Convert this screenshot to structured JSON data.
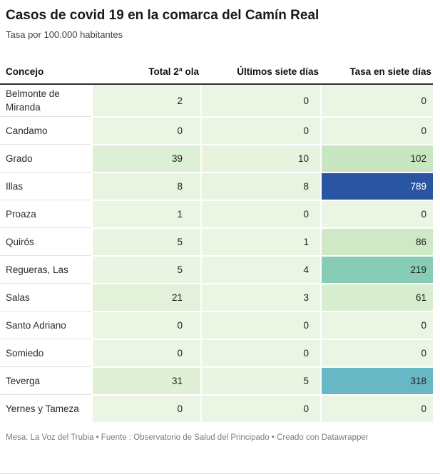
{
  "header": {
    "title": "Casos de covid 19 en la comarca del Camín Real",
    "subtitle": "Tasa por 100.000 habitantes"
  },
  "chart_data": {
    "type": "table",
    "title": "Casos de covid 19 en la comarca del Camín Real",
    "subtitle": "Tasa por 100.000 habitantes",
    "columns": [
      "Concejo",
      "Total 2ª ola",
      "Últimos siete días",
      "Tasa en siete días"
    ],
    "heatmap_scale": {
      "low": "#eaf5e3",
      "mid_green": "#c8e6c0",
      "teal": "#86ccb6",
      "blue_teal": "#67b7c5",
      "high": "#2a55a0"
    },
    "rows": [
      {
        "concejo": "Belmonte de Miranda",
        "cells": [
          {
            "value": 2,
            "bg": "#eaf5e3"
          },
          {
            "value": 0,
            "bg": "#eaf5e3"
          },
          {
            "value": 0,
            "bg": "#eaf5e3"
          }
        ]
      },
      {
        "concejo": "Candamo",
        "cells": [
          {
            "value": 0,
            "bg": "#eaf5e3"
          },
          {
            "value": 0,
            "bg": "#eaf5e3"
          },
          {
            "value": 0,
            "bg": "#eaf5e3"
          }
        ]
      },
      {
        "concejo": "Grado",
        "cells": [
          {
            "value": 39,
            "bg": "#ddefd4"
          },
          {
            "value": 10,
            "bg": "#e7f3df"
          },
          {
            "value": 102,
            "bg": "#c8e6c0"
          }
        ]
      },
      {
        "concejo": "Illas",
        "cells": [
          {
            "value": 8,
            "bg": "#e8f4e0"
          },
          {
            "value": 8,
            "bg": "#e8f4e0"
          },
          {
            "value": 789,
            "bg": "#2a55a0",
            "fg": "#ffffff"
          }
        ]
      },
      {
        "concejo": "Proaza",
        "cells": [
          {
            "value": 1,
            "bg": "#eaf5e3"
          },
          {
            "value": 0,
            "bg": "#eaf5e3"
          },
          {
            "value": 0,
            "bg": "#eaf5e3"
          }
        ]
      },
      {
        "concejo": "Quirós",
        "cells": [
          {
            "value": 5,
            "bg": "#e9f5e2"
          },
          {
            "value": 1,
            "bg": "#eaf5e3"
          },
          {
            "value": 86,
            "bg": "#cfe9c6"
          }
        ]
      },
      {
        "concejo": "Regueras, Las",
        "cells": [
          {
            "value": 5,
            "bg": "#e9f5e2"
          },
          {
            "value": 4,
            "bg": "#eaf5e3"
          },
          {
            "value": 219,
            "bg": "#86ccb6"
          }
        ]
      },
      {
        "concejo": "Salas",
        "cells": [
          {
            "value": 21,
            "bg": "#e3f1da"
          },
          {
            "value": 3,
            "bg": "#eaf5e3"
          },
          {
            "value": 61,
            "bg": "#d8edcf"
          }
        ]
      },
      {
        "concejo": "Santo Adriano",
        "cells": [
          {
            "value": 0,
            "bg": "#eaf5e3"
          },
          {
            "value": 0,
            "bg": "#eaf5e3"
          },
          {
            "value": 0,
            "bg": "#eaf5e3"
          }
        ]
      },
      {
        "concejo": "Somiedo",
        "cells": [
          {
            "value": 0,
            "bg": "#eaf5e3"
          },
          {
            "value": 0,
            "bg": "#eaf5e3"
          },
          {
            "value": 0,
            "bg": "#eaf5e3"
          }
        ]
      },
      {
        "concejo": "Teverga",
        "cells": [
          {
            "value": 31,
            "bg": "#e0f0d7"
          },
          {
            "value": 5,
            "bg": "#e9f5e2"
          },
          {
            "value": 318,
            "bg": "#67b7c5"
          }
        ]
      },
      {
        "concejo": "Yernes y Tameza",
        "cells": [
          {
            "value": 0,
            "bg": "#eaf5e3"
          },
          {
            "value": 0,
            "bg": "#eaf5e3"
          },
          {
            "value": 0,
            "bg": "#eaf5e3"
          }
        ]
      }
    ]
  },
  "footer": {
    "byline": "Mesa: La Voz del Trubia • Fuente : Observatorio de Salud del Principado • Creado con Datawrapper"
  },
  "colors": {
    "page_bg": "#ffffff",
    "title_text": "#191919",
    "subtitle_text": "#3e3e3e",
    "header_text": "#0f0f0f",
    "header_rule": "#2f2f2f",
    "name_text": "#2b2b2b",
    "cell_text": "#1f1f1f",
    "row_rule": "#e3e3e3",
    "col_gap": "#ffffff",
    "footer_text": "#7c7c7c",
    "bottom_rule": "#d9d9d9"
  }
}
